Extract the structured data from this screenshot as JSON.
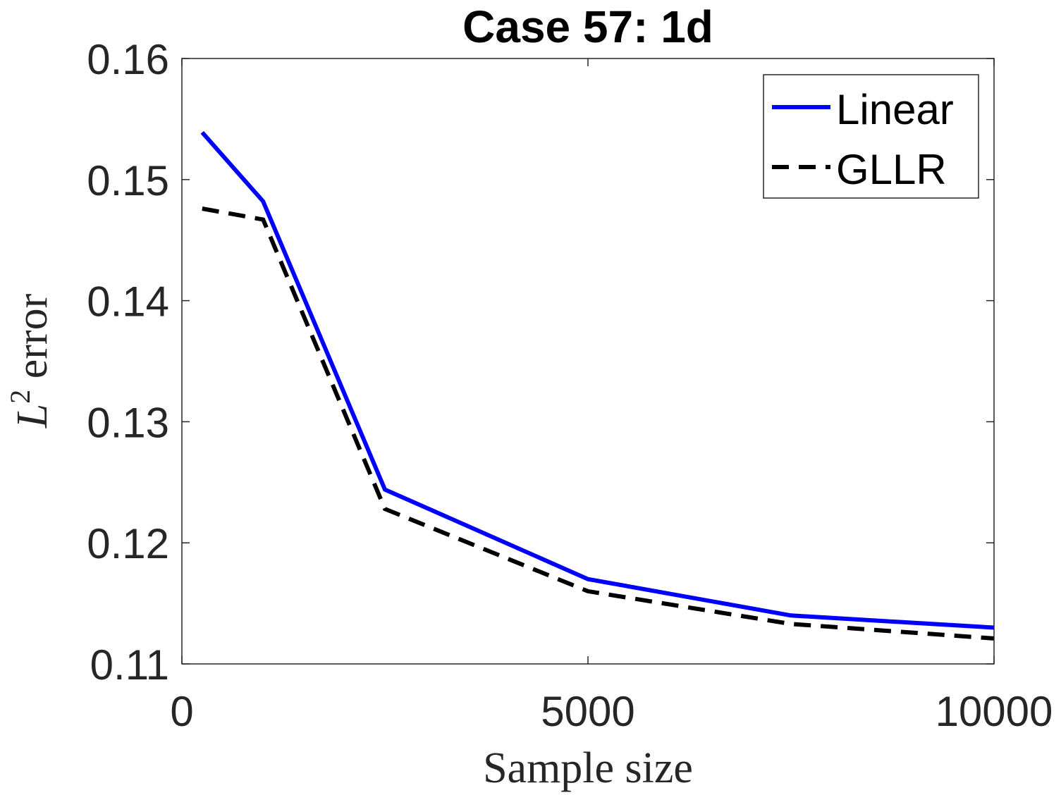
{
  "chart_data": {
    "type": "line",
    "title": "Case 57: 1d",
    "xlabel": "Sample size",
    "ylabel_base": "L",
    "ylabel_sup": "2",
    "ylabel_rest": " error",
    "xlim": [
      0,
      10000
    ],
    "ylim": [
      0.11,
      0.16
    ],
    "xticks": [
      0,
      5000,
      10000
    ],
    "xtick_labels": [
      "0",
      "5000",
      "10000"
    ],
    "yticks": [
      0.11,
      0.12,
      0.13,
      0.14,
      0.15,
      0.16
    ],
    "ytick_labels": [
      "0.11",
      "0.12",
      "0.13",
      "0.14",
      "0.15",
      "0.16"
    ],
    "grid": false,
    "legend_position": "top-right",
    "series": [
      {
        "name": "Linear",
        "color": "#0000ff",
        "style": "solid",
        "x": [
          250,
          1000,
          2500,
          5000,
          7500,
          10000
        ],
        "y": [
          0.1539,
          0.1482,
          0.1244,
          0.117,
          0.114,
          0.113
        ]
      },
      {
        "name": "GLLR",
        "color": "#000000",
        "style": "dashed",
        "x": [
          250,
          1000,
          2500,
          5000,
          7500,
          10000
        ],
        "y": [
          0.1476,
          0.1467,
          0.1228,
          0.116,
          0.1133,
          0.1121
        ]
      }
    ]
  }
}
